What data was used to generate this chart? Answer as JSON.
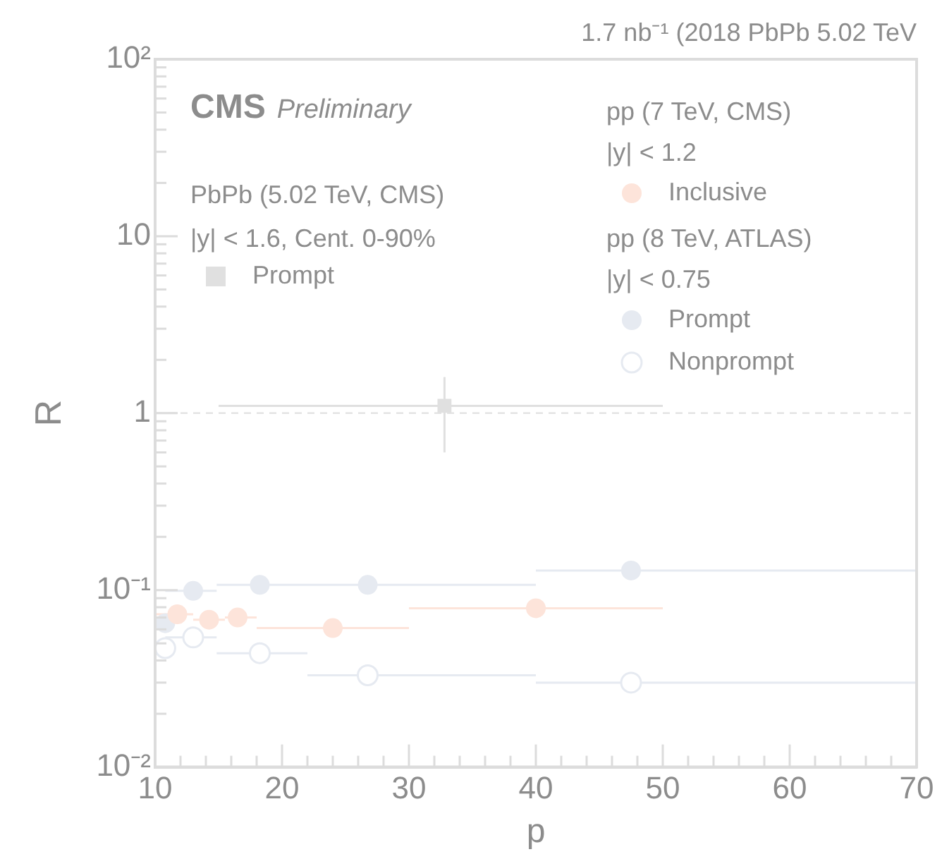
{
  "chart_data": {
    "type": "scatter",
    "xlabel": "p",
    "ylabel": "R",
    "xlim": [
      10,
      70
    ],
    "xticks": [
      10,
      {
        "value": 12,
        "label": null
      },
      {
        "value": 14,
        "label": null
      },
      {
        "value": 16,
        "label": null
      },
      {
        "value": 18,
        "label": null
      },
      20,
      {
        "value": 22,
        "label": null
      },
      {
        "value": 24,
        "label": null
      },
      {
        "value": 26,
        "label": null
      },
      {
        "value": 28,
        "label": null
      },
      30,
      {
        "value": 32,
        "label": null
      },
      {
        "value": 34,
        "label": null
      },
      {
        "value": 36,
        "label": null
      },
      {
        "value": 38,
        "label": null
      },
      40,
      {
        "value": 42,
        "label": null
      },
      {
        "value": 44,
        "label": null
      },
      {
        "value": 46,
        "label": null
      },
      {
        "value": 48,
        "label": null
      },
      50,
      {
        "value": 52,
        "label": null
      },
      {
        "value": 54,
        "label": null
      },
      {
        "value": 56,
        "label": null
      },
      {
        "value": 58,
        "label": null
      },
      60,
      {
        "value": 62,
        "label": null
      },
      {
        "value": 64,
        "label": null
      },
      {
        "value": 66,
        "label": null
      },
      {
        "value": 68,
        "label": null
      },
      70
    ],
    "ylim": [
      0.01,
      100
    ],
    "yticks": [
      {
        "value": 0.01,
        "label": "10⁻²"
      },
      {
        "value": 0.1,
        "label": "10⁻¹"
      },
      {
        "value": 1,
        "label": "1"
      },
      {
        "value": 10,
        "label": "10"
      },
      {
        "value": 100,
        "label": "10²"
      }
    ],
    "log": "y",
    "grid": false,
    "legend": "top",
    "ref_lines": [
      {
        "axis": "y",
        "value": 1,
        "label": null,
        "color": "#e4e4e4",
        "line_style": "dashed"
      }
    ],
    "annotations": [
      "1.7 nb⁻¹ (2018 PbPb 5.02 TeV",
      "CMS",
      "Preliminary",
      "PbPb (5.02 TeV, CMS)",
      "|y| < 1.6, Cent. 0-90%",
      "pp (7 TeV, CMS)",
      "|y| < 1.2",
      "pp (8 TeV, ATLAS)",
      "|y| < 0.75"
    ],
    "series": [
      {
        "name": "Prompt",
        "color": "#e0e0e0",
        "marker": "square",
        "x": [
          32.8
        ],
        "values": [
          1.1
        ],
        "xerrors": [
          [
            15,
            50
          ]
        ],
        "errors": [
          [
            0.6,
            1.6
          ]
        ]
      },
      {
        "name": "Inclusive",
        "color": "#fde4da",
        "marker": "circle",
        "x": [
          11.75,
          14.25,
          16.5,
          24,
          40
        ],
        "values": [
          0.073,
          0.068,
          0.07,
          0.061,
          0.079
        ],
        "xerrors": [
          [
            10,
            13
          ],
          [
            13,
            15.5
          ],
          [
            15.5,
            18
          ],
          [
            18,
            30
          ],
          [
            30,
            50
          ]
        ]
      },
      {
        "name": "Prompt",
        "color": "#e6eaf1",
        "marker": "circle",
        "x": [
          10.8,
          13,
          18.25,
          26.75,
          47.5
        ],
        "values": [
          0.065,
          0.099,
          0.107,
          0.107,
          0.129
        ],
        "xerrors": [
          [
            10,
            11.5
          ],
          [
            10.8,
            14.85
          ],
          [
            14.85,
            22
          ],
          [
            22,
            40
          ],
          [
            40,
            70
          ]
        ]
      },
      {
        "name": "Nonprompt",
        "color": "#e6eaf1",
        "marker": "circle-open",
        "x": [
          10.8,
          13,
          18.25,
          26.75,
          47.5
        ],
        "values": [
          0.047,
          0.054,
          0.044,
          0.033,
          0.03
        ],
        "xerrors": [
          [
            10,
            11.5
          ],
          [
            10.8,
            14.85
          ],
          [
            14.85,
            22
          ],
          [
            22,
            40
          ],
          [
            40,
            70
          ]
        ]
      }
    ]
  }
}
